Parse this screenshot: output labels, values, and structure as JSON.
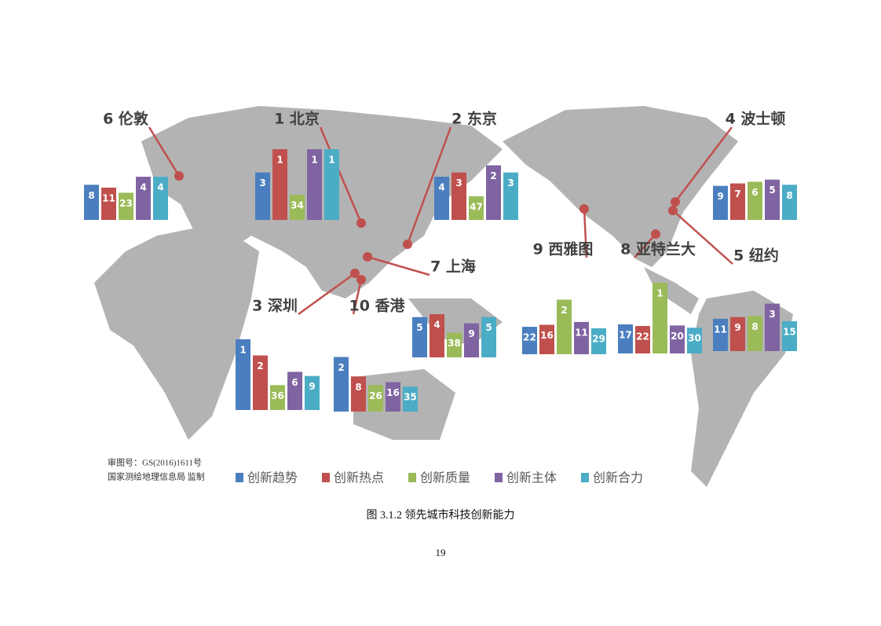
{
  "chart_data": {
    "type": "bar",
    "categories": [
      "6 伦敦",
      "1 北京",
      "2 东京",
      "4 波士顿",
      "3 深圳",
      "10 香港",
      "7 上海",
      "9 西雅图",
      "8 亚特兰大",
      "5 纽约"
    ],
    "series": [
      {
        "name": "创新趋势",
        "color": "#4a7ebf",
        "values": [
          8,
          3,
          4,
          9,
          1,
          2,
          5,
          22,
          17,
          11
        ]
      },
      {
        "name": "创新热点",
        "color": "#c0504d",
        "values": [
          11,
          1,
          3,
          7,
          2,
          8,
          4,
          16,
          22,
          9
        ]
      },
      {
        "name": "创新质量",
        "color": "#9bbb59",
        "values": [
          23,
          34,
          47,
          6,
          36,
          26,
          38,
          2,
          1,
          8
        ]
      },
      {
        "name": "创新主体",
        "color": "#8064a2",
        "values": [
          4,
          1,
          2,
          5,
          6,
          16,
          9,
          11,
          20,
          3
        ]
      },
      {
        "name": "创新合力",
        "color": "#4bacc6",
        "values": [
          4,
          1,
          3,
          8,
          9,
          35,
          5,
          29,
          30,
          15
        ]
      }
    ]
  },
  "map_notes": [
    "审图号：GS(2016)1611号",
    "国家测绘地理信息局 监制"
  ],
  "caption": "图 3.1.2 领先城市科技创新能力",
  "page_number": "19"
}
